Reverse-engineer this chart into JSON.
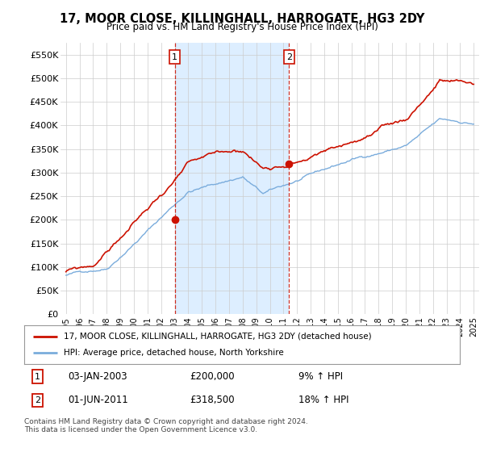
{
  "title": "17, MOOR CLOSE, KILLINGHALL, HARROGATE, HG3 2DY",
  "subtitle": "Price paid vs. HM Land Registry's House Price Index (HPI)",
  "ylim": [
    0,
    575000
  ],
  "yticks": [
    0,
    50000,
    100000,
    150000,
    200000,
    250000,
    300000,
    350000,
    400000,
    450000,
    500000,
    550000
  ],
  "ytick_labels": [
    "£0",
    "£50K",
    "£100K",
    "£150K",
    "£200K",
    "£250K",
    "£300K",
    "£350K",
    "£400K",
    "£450K",
    "£500K",
    "£550K"
  ],
  "hpi_color": "#7aacdc",
  "price_color": "#cc1100",
  "bg_color": "#ffffff",
  "shaded_color": "#ddeeff",
  "plot_bg": "#ffffff",
  "grid_color": "#cccccc",
  "marker1_price": 200000,
  "marker1_date_str": "03-JAN-2003",
  "marker1_price_str": "£200,000",
  "marker1_hpi_str": "9% ↑ HPI",
  "marker2_price": 318500,
  "marker2_date_str": "01-JUN-2011",
  "marker2_price_str": "£318,500",
  "marker2_hpi_str": "18% ↑ HPI",
  "legend_line1": "17, MOOR CLOSE, KILLINGHALL, HARROGATE, HG3 2DY (detached house)",
  "legend_line2": "HPI: Average price, detached house, North Yorkshire",
  "footer": "Contains HM Land Registry data © Crown copyright and database right 2024.\nThis data is licensed under the Open Government Licence v3.0."
}
